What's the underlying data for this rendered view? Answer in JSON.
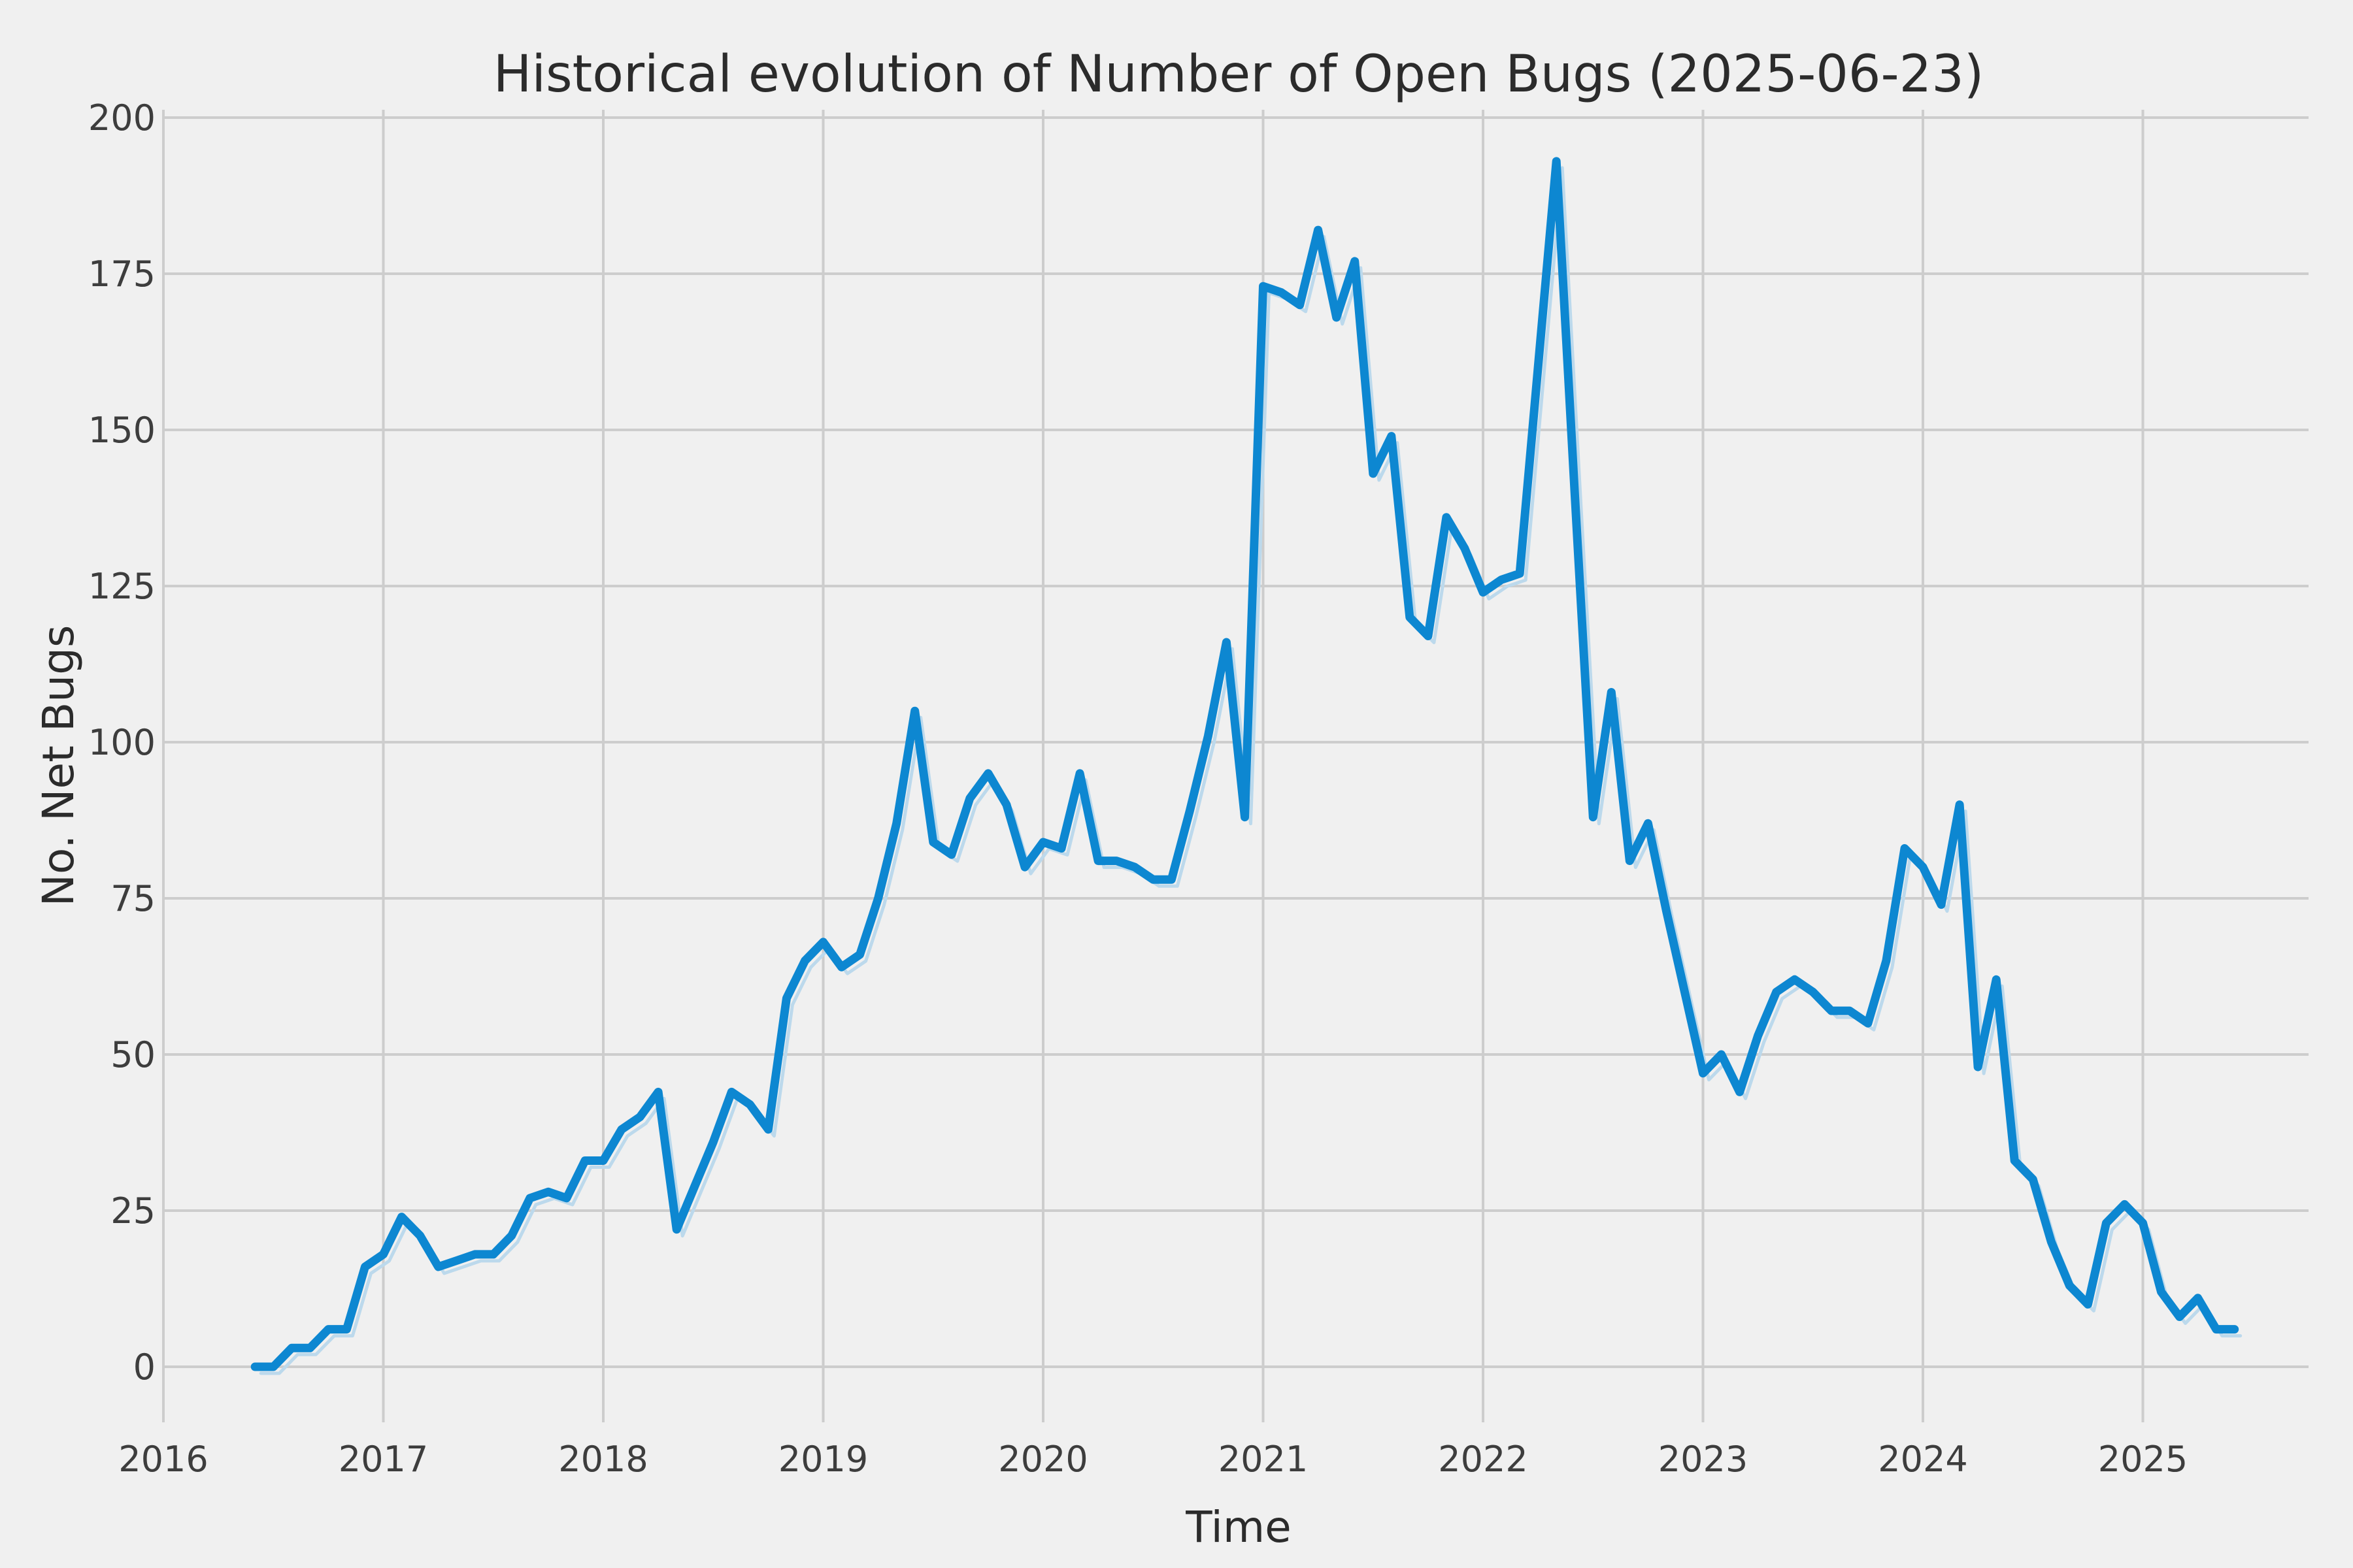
{
  "chart_data": {
    "type": "line",
    "title": "Historical evolution of Number of Open Bugs (2025-06-23)",
    "xlabel": "Time",
    "ylabel": "No. Net Bugs",
    "grid": true,
    "legend_position": "none",
    "background_color": "#f0f0f0",
    "grid_color": "#cdcdcd",
    "line_color": "#0d87d1",
    "shadow_line_color": "#bcd9ec",
    "x_tick_labels": [
      "2016",
      "2017",
      "2018",
      "2019",
      "2020",
      "2021",
      "2022",
      "2023",
      "2024",
      "2025"
    ],
    "y_tick_labels": [
      0,
      25,
      50,
      75,
      100,
      125,
      150,
      175,
      200
    ],
    "ylim": [
      -9,
      201
    ],
    "xlim_years": [
      2016.0,
      2025.75
    ],
    "series": [
      {
        "name": "open-bugs",
        "start": "2016-06",
        "frequency": "monthly",
        "values": [
          0,
          0,
          3,
          3,
          6,
          6,
          16,
          18,
          24,
          21,
          16,
          17,
          18,
          18,
          21,
          27,
          28,
          27,
          33,
          33,
          38,
          40,
          44,
          22,
          29,
          36,
          44,
          42,
          38,
          59,
          65,
          68,
          64,
          66,
          75,
          87,
          105,
          84,
          82,
          91,
          95,
          90,
          80,
          84,
          83,
          95,
          81,
          81,
          80,
          78,
          78,
          89,
          101,
          116,
          88,
          173,
          172,
          170,
          182,
          168,
          177,
          143,
          149,
          120,
          117,
          136,
          131,
          124,
          126,
          127,
          160,
          193,
          140,
          88,
          108,
          81,
          87,
          73,
          60,
          47,
          50,
          44,
          53,
          60,
          62,
          60,
          57,
          57,
          55,
          65,
          83,
          80,
          74,
          90,
          48,
          62,
          33,
          30,
          20,
          13,
          10,
          23,
          26,
          23,
          12,
          8,
          11,
          6,
          6
        ]
      }
    ]
  }
}
